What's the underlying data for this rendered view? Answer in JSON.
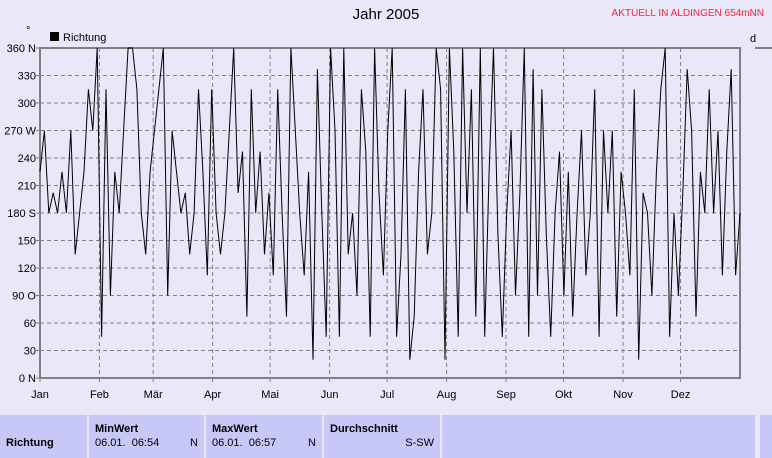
{
  "chart_data": {
    "type": "line",
    "title": "Jahr 2005",
    "station": "AKTUELL IN ALDINGEN 654mNN",
    "ylabel": "°",
    "legend": "Richtung",
    "legend_position": "top-left",
    "grid": true,
    "ylim": [
      0,
      360
    ],
    "y_ticks": [
      "0 N",
      "30",
      "60",
      "90 O",
      "120",
      "150",
      "180 S",
      "210",
      "240",
      "270 W",
      "300",
      "330",
      "360 N"
    ],
    "x_ticks": [
      "Jan",
      "Feb",
      "Mär",
      "Apr",
      "Mai",
      "Jun",
      "Jul",
      "Aug",
      "Sep",
      "Okt",
      "Nov",
      "Dez"
    ],
    "series_color": "#000000",
    "values": [
      225,
      270,
      180,
      202,
      180,
      225,
      180,
      270,
      135,
      180,
      225,
      315,
      270,
      360,
      45,
      315,
      90,
      225,
      180,
      270,
      360,
      360,
      315,
      180,
      135,
      225,
      270,
      315,
      360,
      90,
      270,
      225,
      180,
      202,
      135,
      180,
      315,
      225,
      112,
      315,
      180,
      135,
      180,
      270,
      360,
      202,
      247,
      67,
      315,
      180,
      247,
      135,
      202,
      112,
      315,
      180,
      67,
      360,
      270,
      180,
      112,
      225,
      20,
      337,
      180,
      45,
      360,
      270,
      45,
      360,
      135,
      180,
      90,
      315,
      247,
      45,
      360,
      202,
      112,
      270,
      360,
      45,
      135,
      315,
      20,
      67,
      225,
      315,
      135,
      180,
      360,
      315,
      20,
      360,
      247,
      45,
      360,
      180,
      315,
      67,
      360,
      45,
      225,
      360,
      157,
      45,
      180,
      270,
      90,
      202,
      360,
      45,
      337,
      90,
      315,
      157,
      45,
      180,
      247,
      90,
      225,
      67,
      180,
      270,
      112,
      180,
      315,
      45,
      270,
      180,
      270,
      67,
      225,
      180,
      112,
      315,
      20,
      202,
      180,
      90,
      225,
      315,
      360,
      45,
      180,
      90,
      202,
      337,
      270,
      67,
      225,
      180,
      315,
      180,
      270,
      112,
      247,
      337,
      112,
      180
    ]
  },
  "table": {
    "row_label": "Richtung",
    "min": {
      "header": "MinWert",
      "time": "06.01.  06:54",
      "value": "N"
    },
    "max": {
      "header": "MaxWert",
      "time": "06.01.  06:57",
      "value": "N"
    },
    "avg": {
      "header": "Durchschnitt",
      "value": "S-SW"
    }
  },
  "right_panel_label": "d"
}
